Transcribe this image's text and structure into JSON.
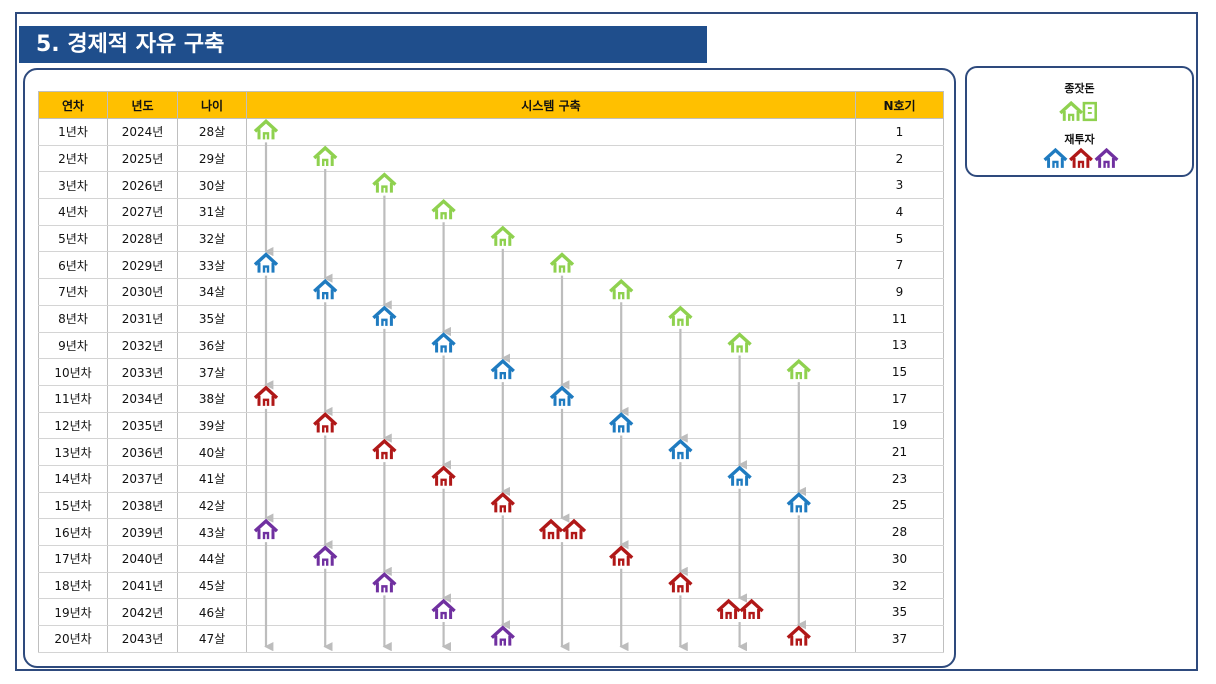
{
  "page_title": "5. 경제적 자유 구축",
  "legend": {
    "seed_label": "종잣돈",
    "reinvest_label": "재투자",
    "seed_icon": "green-house-and-building-icon",
    "reinvest_icons": [
      "blue-house-icon",
      "red-house-icon",
      "purple-house-icon"
    ]
  },
  "colors": {
    "title_bg": "#1f4e8c",
    "header_bg": "#ffc000",
    "green": "#8fd14f",
    "blue": "#1f7bc0",
    "red": "#b01818",
    "purple": "#7030a0",
    "arrow": "#bdbdbd"
  },
  "table": {
    "headers": [
      "연차",
      "년도",
      "나이",
      "시스템 구축",
      "N호기"
    ],
    "rows": [
      {
        "year_no": "1년차",
        "year": "2024년",
        "age": "28살",
        "count": "1"
      },
      {
        "year_no": "2년차",
        "year": "2025년",
        "age": "29살",
        "count": "2"
      },
      {
        "year_no": "3년차",
        "year": "2026년",
        "age": "30살",
        "count": "3"
      },
      {
        "year_no": "4년차",
        "year": "2027년",
        "age": "31살",
        "count": "4"
      },
      {
        "year_no": "5년차",
        "year": "2028년",
        "age": "32살",
        "count": "5"
      },
      {
        "year_no": "6년차",
        "year": "2029년",
        "age": "33살",
        "count": "7"
      },
      {
        "year_no": "7년차",
        "year": "2030년",
        "age": "34살",
        "count": "9"
      },
      {
        "year_no": "8년차",
        "year": "2031년",
        "age": "35살",
        "count": "11"
      },
      {
        "year_no": "9년차",
        "year": "2032년",
        "age": "36살",
        "count": "13"
      },
      {
        "year_no": "10년차",
        "year": "2033년",
        "age": "37살",
        "count": "15"
      },
      {
        "year_no": "11년차",
        "year": "2034년",
        "age": "38살",
        "count": "17"
      },
      {
        "year_no": "12년차",
        "year": "2035년",
        "age": "39살",
        "count": "19"
      },
      {
        "year_no": "13년차",
        "year": "2036년",
        "age": "40살",
        "count": "21"
      },
      {
        "year_no": "14년차",
        "year": "2037년",
        "age": "41살",
        "count": "23"
      },
      {
        "year_no": "15년차",
        "year": "2038년",
        "age": "42살",
        "count": "25"
      },
      {
        "year_no": "16년차",
        "year": "2039년",
        "age": "43살",
        "count": "28"
      },
      {
        "year_no": "17년차",
        "year": "2040년",
        "age": "44살",
        "count": "30"
      },
      {
        "year_no": "18년차",
        "year": "2041년",
        "age": "45살",
        "count": "32"
      },
      {
        "year_no": "19년차",
        "year": "2042년",
        "age": "46살",
        "count": "35"
      },
      {
        "year_no": "20년차",
        "year": "2043년",
        "age": "47살",
        "count": "37"
      }
    ]
  },
  "system_houses": [
    {
      "lane": 1,
      "year": 1,
      "color": "green",
      "count": 1
    },
    {
      "lane": 1,
      "year": 6,
      "color": "blue",
      "count": 1
    },
    {
      "lane": 1,
      "year": 11,
      "color": "red",
      "count": 1
    },
    {
      "lane": 1,
      "year": 16,
      "color": "purple",
      "count": 1
    },
    {
      "lane": 2,
      "year": 2,
      "color": "green",
      "count": 1
    },
    {
      "lane": 2,
      "year": 7,
      "color": "blue",
      "count": 1
    },
    {
      "lane": 2,
      "year": 12,
      "color": "red",
      "count": 1
    },
    {
      "lane": 2,
      "year": 17,
      "color": "purple",
      "count": 1
    },
    {
      "lane": 3,
      "year": 3,
      "color": "green",
      "count": 1
    },
    {
      "lane": 3,
      "year": 8,
      "color": "blue",
      "count": 1
    },
    {
      "lane": 3,
      "year": 13,
      "color": "red",
      "count": 1
    },
    {
      "lane": 3,
      "year": 18,
      "color": "purple",
      "count": 1
    },
    {
      "lane": 4,
      "year": 4,
      "color": "green",
      "count": 1
    },
    {
      "lane": 4,
      "year": 9,
      "color": "blue",
      "count": 1
    },
    {
      "lane": 4,
      "year": 14,
      "color": "red",
      "count": 1
    },
    {
      "lane": 4,
      "year": 19,
      "color": "purple",
      "count": 1
    },
    {
      "lane": 5,
      "year": 5,
      "color": "green",
      "count": 1
    },
    {
      "lane": 5,
      "year": 10,
      "color": "blue",
      "count": 1
    },
    {
      "lane": 5,
      "year": 15,
      "color": "red",
      "count": 1
    },
    {
      "lane": 5,
      "year": 20,
      "color": "purple",
      "count": 1
    },
    {
      "lane": 6,
      "year": 6,
      "color": "green",
      "count": 1
    },
    {
      "lane": 6,
      "year": 11,
      "color": "blue",
      "count": 1
    },
    {
      "lane": 6,
      "year": 16,
      "color": "red",
      "count": 2
    },
    {
      "lane": 7,
      "year": 7,
      "color": "green",
      "count": 1
    },
    {
      "lane": 7,
      "year": 12,
      "color": "blue",
      "count": 1
    },
    {
      "lane": 7,
      "year": 17,
      "color": "red",
      "count": 1
    },
    {
      "lane": 8,
      "year": 8,
      "color": "green",
      "count": 1
    },
    {
      "lane": 8,
      "year": 13,
      "color": "blue",
      "count": 1
    },
    {
      "lane": 8,
      "year": 18,
      "color": "red",
      "count": 1
    },
    {
      "lane": 9,
      "year": 9,
      "color": "green",
      "count": 1
    },
    {
      "lane": 9,
      "year": 14,
      "color": "blue",
      "count": 1
    },
    {
      "lane": 9,
      "year": 19,
      "color": "red",
      "count": 2
    },
    {
      "lane": 10,
      "year": 10,
      "color": "green",
      "count": 1
    },
    {
      "lane": 10,
      "year": 15,
      "color": "blue",
      "count": 1
    },
    {
      "lane": 10,
      "year": 20,
      "color": "red",
      "count": 1
    }
  ]
}
